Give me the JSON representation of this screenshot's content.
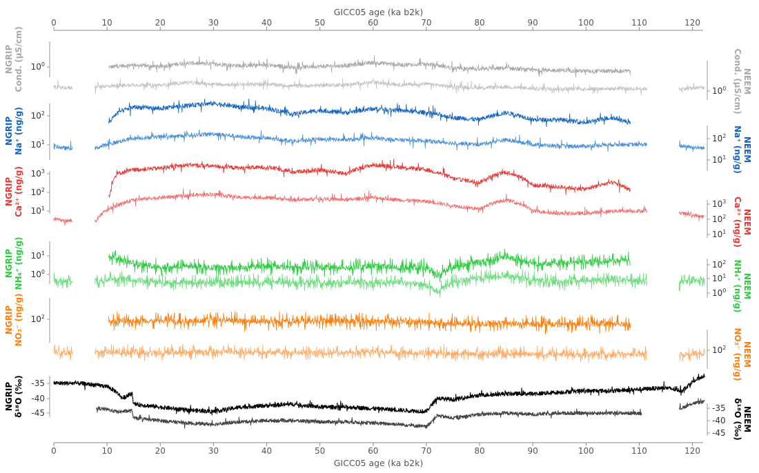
{
  "chart_data": {
    "type": "line",
    "x_axis": {
      "label": "GICC05 age (ka b2k)",
      "range": [
        0,
        122
      ],
      "ticks": [
        0,
        10,
        20,
        30,
        40,
        50,
        60,
        70,
        80,
        90,
        100,
        110,
        120
      ],
      "position": "top and bottom"
    },
    "grid": false,
    "panels": [
      {
        "variable": "conductivity",
        "color": "#a9a9a9",
        "left_label": [
          "NGRIP",
          "Cond. (µS/cm)"
        ],
        "right_label": [
          "NEEM",
          "Cond. (µS/cm)"
        ],
        "scale": "log",
        "left_ticks": [
          {
            "text": "10",
            "sup": "0"
          }
        ],
        "right_ticks": [
          {
            "text": "10",
            "sup": "0"
          }
        ],
        "series": [
          {
            "name": "NGRIP",
            "color": "#a9a9a9",
            "segments": [
              [
                10.3,
                108.4
              ]
            ],
            "x": [
              11,
              15,
              20,
              25,
              30,
              35,
              40,
              45,
              50,
              55,
              60,
              65,
              70,
              75,
              80,
              85,
              90,
              95,
              100,
              105,
              108
            ],
            "y": [
              1.6,
              2.0,
              1.6,
              2.5,
              2.2,
              1.8,
              2.0,
              1.5,
              1.7,
              1.8,
              2.6,
              2.0,
              2.2,
              1.4,
              1.2,
              1.4,
              1.1,
              1.1,
              1.0,
              1.0,
              1.0
            ]
          },
          {
            "name": "NEEM",
            "color": "#c4c4c4",
            "segments": [
              [
                0,
                3.5
              ],
              [
                7.7,
                111.5
              ],
              [
                117.5,
                122.3
              ]
            ],
            "x": [
              0,
              2,
              3.5,
              8,
              15,
              20,
              25,
              30,
              35,
              40,
              45,
              50,
              55,
              60,
              65,
              70,
              75,
              80,
              85,
              90,
              95,
              100,
              105,
              111,
              118,
              122
            ],
            "y": [
              1.0,
              0.9,
              0.9,
              1.0,
              1.3,
              1.2,
              1.7,
              1.4,
              1.3,
              1.4,
              1.1,
              1.2,
              1.3,
              1.7,
              1.3,
              1.4,
              1.0,
              0.9,
              1.0,
              0.8,
              0.8,
              0.8,
              0.8,
              0.8,
              0.8,
              0.9
            ]
          }
        ]
      },
      {
        "variable": "sodium",
        "color": "#1565c0",
        "left_label": [
          "NGRIP",
          "Na⁺ (ng/g)"
        ],
        "right_label": [
          "NEEM",
          "Na⁺ (ng/g)"
        ],
        "scale": "log",
        "left_ticks": [
          {
            "text": "10",
            "sup": "2"
          },
          {
            "text": "10",
            "sup": "1"
          }
        ],
        "right_ticks": [
          {
            "text": "10",
            "sup": "2"
          },
          {
            "text": "10",
            "sup": "1"
          }
        ],
        "series": [
          {
            "name": "NGRIP",
            "color": "#1565c0",
            "segments": [
              [
                10.3,
                108.4
              ]
            ],
            "x": [
              10.5,
              12,
              15,
              20,
              25,
              30,
              35,
              40,
              45,
              50,
              55,
              60,
              65,
              70,
              75,
              80,
              85,
              90,
              95,
              100,
              105,
              108
            ],
            "y": [
              15,
              40,
              70,
              60,
              80,
              100,
              70,
              60,
              35,
              50,
              40,
              60,
              50,
              40,
              25,
              20,
              40,
              20,
              20,
              15,
              25,
              15
            ]
          },
          {
            "name": "NEEM",
            "color": "#4a90d9",
            "segments": [
              [
                0,
                3.5
              ],
              [
                7.7,
                111.5
              ],
              [
                117.5,
                122.3
              ]
            ],
            "x": [
              0,
              2,
              3.5,
              8,
              12,
              15,
              20,
              25,
              30,
              35,
              40,
              45,
              50,
              55,
              60,
              65,
              70,
              75,
              80,
              85,
              90,
              95,
              100,
              105,
              111,
              118,
              122
            ],
            "y": [
              5,
              4,
              4,
              4,
              8,
              12,
              14,
              16,
              20,
              14,
              12,
              9,
              11,
              10,
              12,
              10,
              9,
              7,
              6,
              10,
              6,
              5,
              5,
              6,
              6,
              5,
              4
            ]
          }
        ]
      },
      {
        "variable": "calcium",
        "color": "#e53935",
        "left_label": [
          "NGRIP",
          "Ca²⁺ (ng/g)"
        ],
        "right_label": [
          "NEEM",
          "Ca²⁺ (ng/g)"
        ],
        "scale": "log",
        "left_ticks": [
          {
            "text": "10",
            "sup": "3"
          },
          {
            "text": "10",
            "sup": "2"
          },
          {
            "text": "10",
            "sup": "1"
          }
        ],
        "right_ticks": [
          {
            "text": "10",
            "sup": "3"
          },
          {
            "text": "10",
            "sup": "2"
          },
          {
            "text": "10",
            "sup": "1"
          }
        ],
        "series": [
          {
            "name": "NGRIP",
            "color": "#e53935",
            "segments": [
              [
                10.3,
                108.4
              ]
            ],
            "x": [
              10.5,
              12,
              15,
              20,
              25,
              30,
              35,
              40,
              45,
              50,
              55,
              60,
              65,
              70,
              75,
              80,
              85,
              90,
              95,
              100,
              105,
              108
            ],
            "y": [
              10,
              100,
              150,
              180,
              250,
              220,
              180,
              200,
              120,
              150,
              100,
              250,
              200,
              150,
              60,
              40,
              120,
              30,
              25,
              20,
              40,
              20
            ]
          },
          {
            "name": "NEEM",
            "color": "#ef7070",
            "segments": [
              [
                0,
                3.5
              ],
              [
                7.7,
                111.5
              ],
              [
                117.5,
                122.3
              ]
            ],
            "x": [
              0,
              2,
              3.5,
              8,
              12,
              15,
              20,
              25,
              30,
              35,
              40,
              45,
              50,
              55,
              60,
              65,
              70,
              75,
              80,
              85,
              90,
              95,
              100,
              105,
              111,
              118,
              122
            ],
            "y": [
              3,
              2.5,
              2.5,
              2.5,
              15,
              30,
              40,
              50,
              60,
              40,
              40,
              30,
              35,
              30,
              40,
              30,
              25,
              15,
              10,
              30,
              8,
              6,
              6,
              8,
              8,
              6,
              4
            ]
          }
        ]
      },
      {
        "variable": "ammonium",
        "color": "#2ecc40",
        "left_label": [
          "NGRIP",
          "NH₄⁺ (ng/g)"
        ],
        "right_label": [
          "NEEM",
          "NH₄⁺ (ng/g)"
        ],
        "scale": "log",
        "left_ticks": [
          {
            "text": "10",
            "sup": "1"
          },
          {
            "text": "10",
            "sup": "0"
          }
        ],
        "right_ticks": [
          {
            "text": "10",
            "sup": "2"
          },
          {
            "text": "10",
            "sup": "1"
          },
          {
            "text": "10",
            "sup": "0"
          }
        ],
        "series": [
          {
            "name": "NGRIP",
            "color": "#2ecc40",
            "segments": [
              [
                10.3,
                108.4
              ]
            ],
            "x": [
              11,
              15,
              20,
              25,
              30,
              35,
              40,
              45,
              50,
              55,
              60,
              65,
              70,
              72,
              75,
              80,
              85,
              90,
              95,
              100,
              105,
              108
            ],
            "y": [
              15,
              8,
              6,
              7,
              6,
              6,
              7,
              6,
              6,
              6,
              7,
              6,
              6,
              3,
              6,
              10,
              15,
              8,
              9,
              10,
              11,
              12
            ]
          },
          {
            "name": "NEEM",
            "color": "#6fdc7f",
            "segments": [
              [
                0,
                3.5
              ],
              [
                7.7,
                111.5
              ],
              [
                117.5,
                122.3
              ]
            ],
            "x": [
              0,
              2,
              3.5,
              8,
              12,
              15,
              20,
              25,
              30,
              35,
              40,
              45,
              50,
              55,
              60,
              65,
              70,
              72,
              75,
              80,
              85,
              90,
              95,
              100,
              105,
              111,
              118,
              122
            ],
            "y": [
              5,
              4,
              4,
              4,
              6,
              5,
              4,
              4,
              4,
              4,
              4,
              4,
              4,
              4,
              4,
              4,
              3,
              1.5,
              4,
              6,
              7,
              5,
              4,
              5,
              5,
              5,
              4,
              5
            ]
          }
        ]
      },
      {
        "variable": "nitrate",
        "color": "#ff7f0e",
        "left_label": [
          "NGRIP",
          "NO₃⁻ (ng/g)"
        ],
        "right_label": [
          "NEEM",
          "NO₃⁻ (ng/g)"
        ],
        "scale": "log",
        "left_ticks": [
          {
            "text": "10",
            "sup": "2"
          }
        ],
        "right_ticks": [
          {
            "text": "10",
            "sup": "2"
          }
        ],
        "series": [
          {
            "name": "NGRIP",
            "color": "#ff7f0e",
            "segments": [
              [
                10.3,
                108.4
              ]
            ],
            "x": [
              10.5,
              15,
              20,
              25,
              30,
              35,
              40,
              45,
              50,
              55,
              60,
              65,
              70,
              75,
              80,
              85,
              90,
              95,
              100,
              105,
              108
            ],
            "y": [
              110,
              120,
              110,
              110,
              130,
              110,
              110,
              110,
              110,
              110,
              110,
              105,
              100,
              90,
              90,
              95,
              85,
              85,
              90,
              90,
              90
            ]
          },
          {
            "name": "NEEM",
            "color": "#ffab66",
            "segments": [
              [
                0,
                3.5
              ],
              [
                7.7,
                111.5
              ],
              [
                117.5,
                122.3
              ]
            ],
            "x": [
              0,
              2,
              3.5,
              8,
              15,
              20,
              25,
              30,
              35,
              40,
              45,
              50,
              55,
              60,
              65,
              70,
              75,
              80,
              85,
              90,
              95,
              100,
              105,
              111,
              118,
              122
            ],
            "y": [
              100,
              95,
              95,
              100,
              100,
              95,
              100,
              110,
              100,
              100,
              95,
              95,
              100,
              105,
              100,
              95,
              90,
              85,
              90,
              85,
              80,
              85,
              85,
              80,
              80,
              90
            ]
          }
        ]
      },
      {
        "variable": "d18O",
        "color": "#000000",
        "left_label": [
          "NGRIP",
          "δ¹⁸O (‰)"
        ],
        "right_label": [
          "NEEM",
          "δ¹⁸O (‰)"
        ],
        "scale": "linear",
        "left_ticks": [
          {
            "text": "-35"
          },
          {
            "text": "-40"
          },
          {
            "text": "-45"
          }
        ],
        "right_ticks": [
          {
            "text": "-35"
          },
          {
            "text": "-40"
          },
          {
            "text": "-45"
          }
        ],
        "series": [
          {
            "name": "NGRIP",
            "color": "#000000",
            "segments": [
              [
                0,
                122.3
              ]
            ],
            "x": [
              0,
              5,
              10,
              11.7,
              12.9,
              14.7,
              15,
              20,
              25,
              30,
              35,
              40,
              45,
              50,
              55,
              60,
              65,
              70,
              72,
              75,
              80,
              85,
              90,
              95,
              100,
              105,
              110,
              115,
              118,
              120,
              122
            ],
            "y": [
              -34.9,
              -35.0,
              -36.0,
              -37.8,
              -40.0,
              -38.5,
              -42.0,
              -43.0,
              -44.0,
              -44.5,
              -43.0,
              -42.5,
              -42.0,
              -43.0,
              -43.0,
              -43.5,
              -44.0,
              -44.5,
              -40.0,
              -40.5,
              -39.0,
              -38.5,
              -38.5,
              -38.0,
              -37.5,
              -37.5,
              -37.0,
              -36.5,
              -37.5,
              -34.5,
              -32.5
            ]
          },
          {
            "name": "NEEM",
            "color": "#444444",
            "segments": [
              [
                8,
                110.5
              ],
              [
                117.5,
                122.3
              ]
            ],
            "x": [
              8,
              10,
              12,
              14.7,
              15,
              20,
              25,
              30,
              35,
              40,
              45,
              50,
              55,
              60,
              65,
              70,
              72,
              75,
              80,
              85,
              90,
              95,
              100,
              105,
              108,
              110,
              118,
              120,
              122
            ],
            "y": [
              -35.0,
              -35.5,
              -36.5,
              -36.0,
              -39.0,
              -40.0,
              -41.0,
              -41.5,
              -40.5,
              -40.0,
              -40.0,
              -40.5,
              -40.5,
              -41.0,
              -41.5,
              -42.5,
              -38.0,
              -39.0,
              -37.5,
              -37.0,
              -37.5,
              -37.0,
              -37.0,
              -37.0,
              -37.0,
              -37.0,
              -35.0,
              -33.0,
              -32.5
            ]
          }
        ]
      }
    ]
  }
}
